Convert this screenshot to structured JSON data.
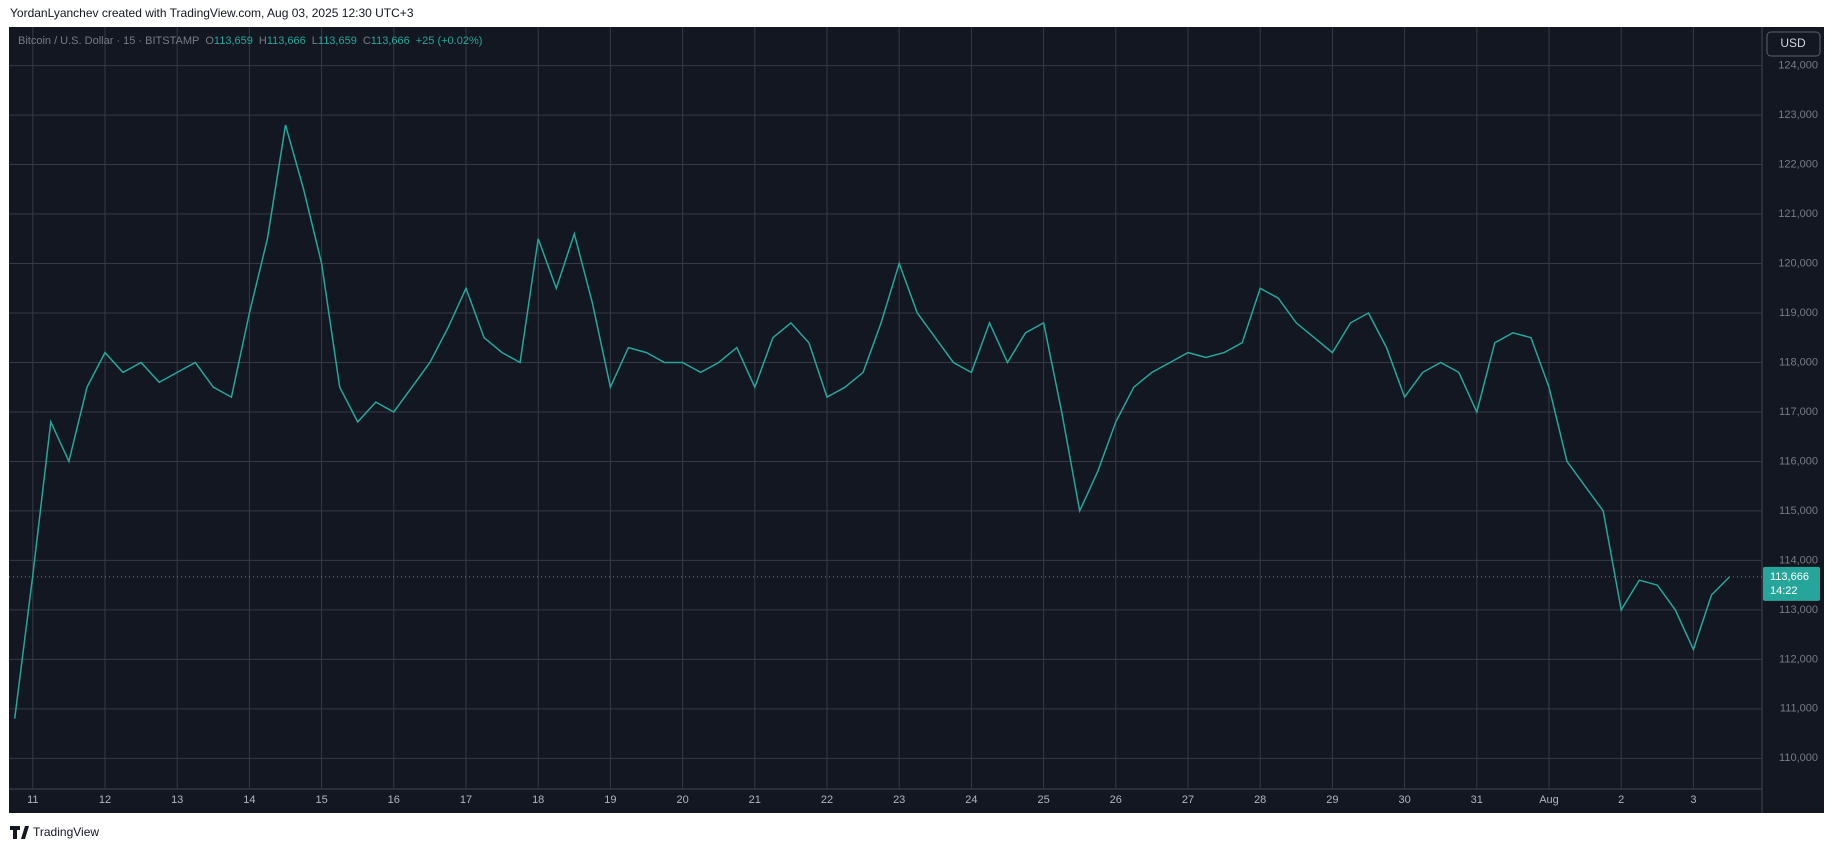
{
  "header": {
    "attribution": "YordanLyanchev created with TradingView.com, Aug 03, 2025 12:30 UTC+3",
    "footer": "TradingView",
    "currency_button": "USD"
  },
  "chart_data": {
    "type": "line",
    "symbol": "Bitcoin / U.S. Dollar · 15 · BITSTAMP",
    "ohlc": [
      {
        "label": "O",
        "value": "113,659"
      },
      {
        "label": "H",
        "value": "113,666"
      },
      {
        "label": "L",
        "value": "113,659"
      },
      {
        "label": "C",
        "value": "113,666"
      }
    ],
    "change": "+25 (+0.02%)",
    "color": "#26a69a",
    "categories": [
      null,
      "11",
      null,
      null,
      null,
      "12",
      null,
      null,
      null,
      "13",
      null,
      null,
      null,
      "14",
      null,
      null,
      null,
      "15",
      null,
      null,
      null,
      "16",
      null,
      null,
      null,
      "17",
      null,
      null,
      null,
      "18",
      null,
      null,
      null,
      "19",
      null,
      null,
      null,
      "20",
      null,
      null,
      null,
      "21",
      null,
      null,
      null,
      "22",
      null,
      null,
      null,
      "23",
      null,
      null,
      null,
      "24",
      null,
      null,
      null,
      "25",
      null,
      null,
      null,
      "26",
      null,
      null,
      null,
      "27",
      null,
      null,
      null,
      "28",
      null,
      null,
      null,
      "29",
      null,
      null,
      null,
      "30",
      null,
      null,
      null,
      "31",
      null,
      null,
      null,
      "Aug",
      null,
      null,
      null,
      "2",
      null,
      null,
      null,
      "3",
      null,
      null
    ],
    "values": [
      110800,
      113700,
      116800,
      116000,
      117500,
      118200,
      117800,
      118000,
      117600,
      117800,
      118000,
      117500,
      117300,
      119000,
      120500,
      122800,
      121500,
      120000,
      117500,
      116800,
      117200,
      117000,
      117500,
      118000,
      118700,
      119500,
      118500,
      118200,
      118000,
      120500,
      119500,
      120600,
      119200,
      117500,
      118300,
      118200,
      118000,
      118000,
      117800,
      118000,
      118300,
      117500,
      118500,
      118800,
      118400,
      117300,
      117500,
      117800,
      118800,
      120000,
      119000,
      118500,
      118000,
      117800,
      118800,
      118000,
      118600,
      118800,
      117000,
      115000,
      115800,
      116800,
      117500,
      117800,
      118000,
      118200,
      118100,
      118200,
      118400,
      119500,
      119300,
      118800,
      118500,
      118200,
      118800,
      119000,
      118300,
      117300,
      117800,
      118000,
      117800,
      117000,
      118400,
      118600,
      118500,
      117500,
      116000,
      115500,
      115000,
      113000,
      113600,
      113500,
      113000,
      112200,
      113300,
      113666
    ],
    "last_price": {
      "value": 113666,
      "label": "113,666",
      "countdown": "14:22"
    },
    "ylim": [
      109380,
      124780
    ],
    "yticks": [
      {
        "value": 110000,
        "label": "110,000"
      },
      {
        "value": 111000,
        "label": "111,000"
      },
      {
        "value": 112000,
        "label": "112,000"
      },
      {
        "value": 113000,
        "label": "113,000"
      },
      {
        "value": 114000,
        "label": "114,000"
      },
      {
        "value": 115000,
        "label": "115,000"
      },
      {
        "value": 116000,
        "label": "116,000"
      },
      {
        "value": 117000,
        "label": "117,000"
      },
      {
        "value": 118000,
        "label": "118,000"
      },
      {
        "value": 119000,
        "label": "119,000"
      },
      {
        "value": 120000,
        "label": "120,000"
      },
      {
        "value": 121000,
        "label": "121,000"
      },
      {
        "value": 122000,
        "label": "122,000"
      },
      {
        "value": 123000,
        "label": "123,000"
      },
      {
        "value": 124000,
        "label": "124,000"
      }
    ],
    "grid": true
  }
}
